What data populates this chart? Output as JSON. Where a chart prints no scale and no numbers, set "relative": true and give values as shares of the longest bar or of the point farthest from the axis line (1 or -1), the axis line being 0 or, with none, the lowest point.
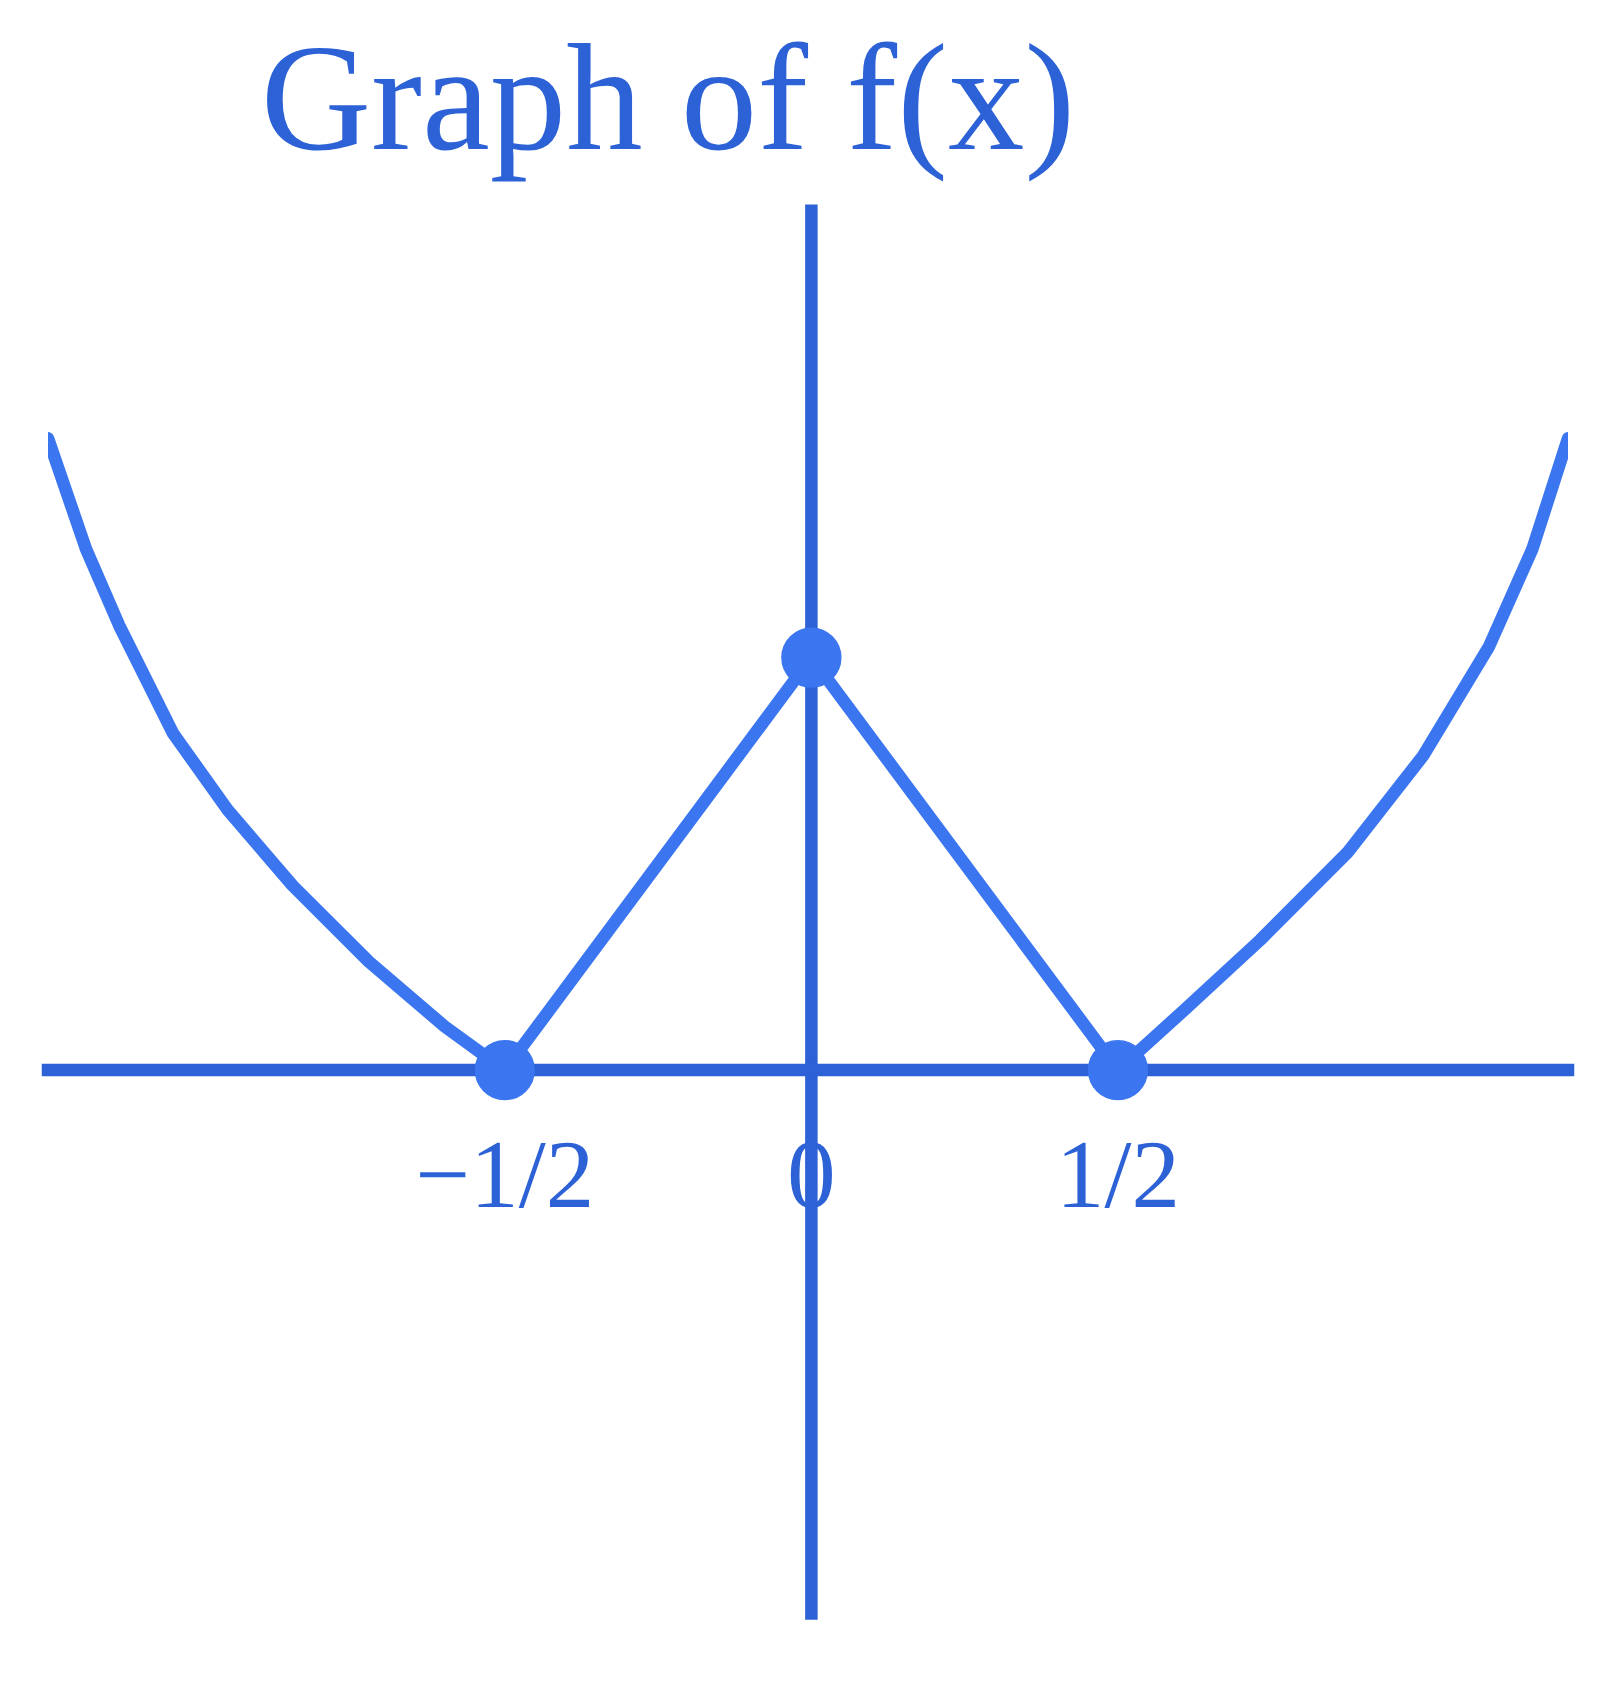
{
  "chart_data": {
    "type": "line",
    "title": "Graph of f(x)",
    "relative": true,
    "xlim": [
      -1.245,
      1.234
    ],
    "xticks": [
      {
        "value": -0.5,
        "label": "−1/2"
      },
      {
        "value": 0,
        "label": "0"
      },
      {
        "value": 0.5,
        "label": "1/2"
      }
    ],
    "ref_lines": [
      {
        "axis": "x",
        "value": 0,
        "color": "#2c62d6"
      }
    ],
    "series": [
      {
        "color": "#3b76f0",
        "x": [
          -1.245,
          -1.183,
          -1.129,
          -1.041,
          -0.952,
          -0.846,
          -0.722,
          -0.598,
          -0.5,
          0,
          0.5,
          0.608,
          0.732,
          0.874,
          0.998,
          1.105,
          1.176,
          1.234
        ],
        "values": [
          1,
          0.825,
          0.704,
          0.533,
          0.412,
          0.292,
          0.172,
          0.069,
          0,
          0.653,
          0,
          0.095,
          0.206,
          0.344,
          0.498,
          0.67,
          0.825,
          1
        ]
      },
      {
        "type": "scatter",
        "color": "#3b76f0",
        "marker": "circle",
        "x": [
          -0.5,
          0,
          0.5
        ],
        "values": [
          0,
          0.653,
          0
        ]
      }
    ]
  }
}
